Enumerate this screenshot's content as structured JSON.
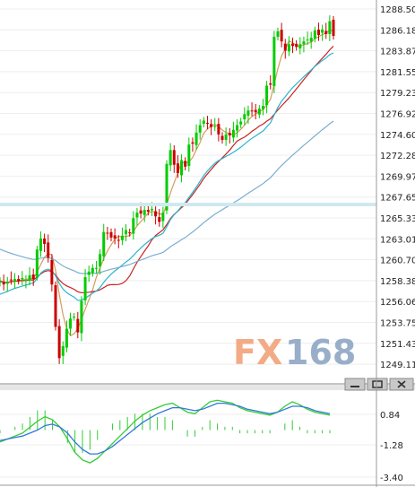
{
  "chart_data": {
    "type": "candlestick",
    "main": {
      "y_ticks": [
        "1288.50",
        "1286.18",
        "1283.87",
        "1281.55",
        "1279.23",
        "1276.92",
        "1274.60",
        "1272.28",
        "1269.97",
        "1267.65",
        "1265.33",
        "1263.01",
        "1260.70",
        "1258.38",
        "1256.06",
        "1253.75",
        "1251.43",
        "1249.11"
      ],
      "ylim": [
        1248.0,
        1289.5
      ],
      "current_price": 1267.65,
      "grid": true,
      "closes": [
        1259.0,
        1258.6,
        1258.9,
        1259.1,
        1259.2,
        1259.0,
        1259.3,
        1259.1,
        1259.6,
        1259.2,
        1262.4,
        1263.6,
        1263.0,
        1261.5,
        1258.6,
        1254.0,
        1250.6,
        1251.9,
        1253.8,
        1254.9,
        1255.1,
        1253.4,
        1256.8,
        1259.4,
        1260.0,
        1260.4,
        1260.4,
        1261.9,
        1264.3,
        1264.2,
        1263.7,
        1263.6,
        1263.4,
        1263.9,
        1264.5,
        1264.2,
        1265.8,
        1266.4,
        1266.3,
        1266.7,
        1266.5,
        1266.8,
        1266.0,
        1265.4,
        1266.4,
        1271.7,
        1273.2,
        1271.6,
        1270.7,
        1272.1,
        1271.4,
        1273.8,
        1273.9,
        1275.1,
        1275.9,
        1276.4,
        1276.1,
        1275.7,
        1275.8,
        1274.9,
        1274.3,
        1274.9,
        1274.8,
        1275.4,
        1275.9,
        1276.3,
        1277.1,
        1277.5,
        1277.4,
        1277.3,
        1277.7,
        1278.0,
        1280.2,
        1280.3,
        1285.5,
        1286.1,
        1285.0,
        1284.0,
        1284.7,
        1284.5,
        1284.4,
        1284.7,
        1285.0,
        1285.2,
        1285.4,
        1286.2,
        1285.7,
        1286.3,
        1285.8,
        1287.2,
        1285.6
      ],
      "indicator_lines": [
        {
          "color": "#d99a5c",
          "period": 5
        },
        {
          "color": "#cc2222",
          "period": 20
        },
        {
          "color": "#2bb5cc",
          "period": 60
        },
        {
          "color": "#7aaed0",
          "period": 200
        }
      ],
      "up_color": "#00cc00",
      "down_color": "#cc0000"
    },
    "sub": {
      "y_ticks": [
        "0.84",
        "-1.28",
        "-3.40"
      ],
      "ylim": [
        -3.7,
        2.5
      ],
      "lines": [
        {
          "color": "#33cc33",
          "values": [
            -0.8,
            -0.6,
            -0.4,
            -0.2,
            0.2,
            0.6,
            0.9,
            0.7,
            0.2,
            -0.6,
            -1.5,
            -2.0,
            -2.2,
            -1.9,
            -1.4,
            -0.9,
            -0.4,
            0.1,
            0.6,
            1.0,
            1.3,
            1.5,
            1.7,
            1.8,
            1.5,
            1.2,
            1.1,
            1.5,
            1.9,
            2.0,
            1.9,
            1.8,
            1.5,
            1.3,
            1.2,
            1.1,
            1.0,
            1.2,
            1.6,
            1.9,
            1.7,
            1.4,
            1.2,
            1.1,
            1.0
          ]
        },
        {
          "color": "#3377dd",
          "values": [
            -0.7,
            -0.6,
            -0.5,
            -0.4,
            -0.2,
            0.0,
            0.3,
            0.4,
            0.2,
            -0.2,
            -0.8,
            -1.3,
            -1.6,
            -1.6,
            -1.4,
            -1.1,
            -0.7,
            -0.3,
            0.1,
            0.5,
            0.8,
            1.1,
            1.3,
            1.5,
            1.5,
            1.4,
            1.3,
            1.4,
            1.6,
            1.8,
            1.8,
            1.7,
            1.6,
            1.4,
            1.3,
            1.2,
            1.1,
            1.2,
            1.4,
            1.6,
            1.6,
            1.5,
            1.3,
            1.2,
            1.1
          ]
        }
      ],
      "histogram_color": "#33cc33"
    }
  },
  "logo": {
    "text": "FX168",
    "fx_color": "#f2a27a",
    "num_color": "#8fa7c4"
  },
  "window_buttons": [
    "minimize-button",
    "restore-button",
    "close-button"
  ]
}
